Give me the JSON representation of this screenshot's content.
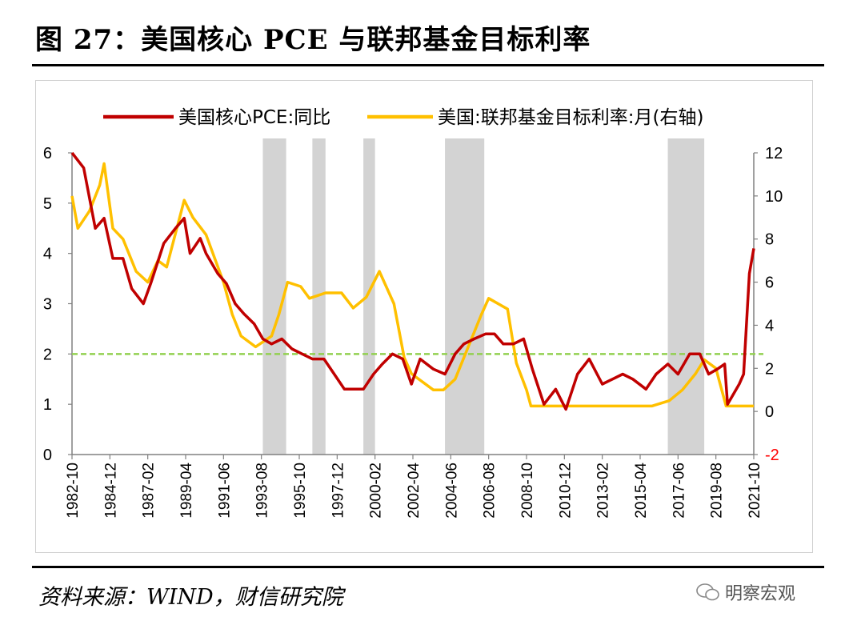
{
  "header": {
    "title": "图 27：美国核心 PCE 与联邦基金目标利率"
  },
  "footer": {
    "source": "资料来源：WIND，财信研究院",
    "watermark": "明察宏观"
  },
  "colors": {
    "pce": "#c00000",
    "ffr": "#ffc000",
    "ref": "#92d050",
    "shade": "#d3d3d3",
    "negative_tick": "#ff0000"
  },
  "chart_data": {
    "type": "line",
    "series": [
      {
        "name": "美国核心PCE:同比",
        "axis": "left",
        "x": [
          "1982-10",
          "1983-06",
          "1984-02",
          "1984-08",
          "1985-02",
          "1985-09",
          "1986-03",
          "1986-11",
          "1987-04",
          "1988-01",
          "1988-09",
          "1989-03",
          "1989-07",
          "1990-02",
          "1990-06",
          "1991-02",
          "1991-08",
          "1992-02",
          "1992-08",
          "1993-03",
          "1993-09",
          "1994-03",
          "1994-10",
          "1995-05",
          "1995-12",
          "1996-07",
          "1997-03",
          "1997-10",
          "1998-05",
          "1998-12",
          "1999-06",
          "2000-01",
          "2000-07",
          "2001-02",
          "2001-09",
          "2002-03",
          "2002-09",
          "2003-06",
          "2004-02",
          "2004-09",
          "2005-03",
          "2005-10",
          "2006-06",
          "2006-12",
          "2007-06",
          "2008-01",
          "2008-08",
          "2009-02",
          "2009-10",
          "2010-06",
          "2011-01",
          "2011-09",
          "2012-05",
          "2013-02",
          "2013-09",
          "2014-04",
          "2014-11",
          "2015-08",
          "2016-03",
          "2016-11",
          "2017-06",
          "2018-02",
          "2018-09",
          "2019-03",
          "2019-09",
          "2020-02",
          "2020-04",
          "2020-12",
          "2021-03",
          "2021-07",
          "2021-10"
        ],
        "values": [
          6.0,
          5.7,
          4.5,
          4.7,
          3.9,
          3.9,
          3.3,
          3.0,
          3.4,
          4.2,
          4.5,
          4.7,
          4.0,
          4.3,
          4.0,
          3.6,
          3.4,
          3.0,
          2.8,
          2.6,
          2.3,
          2.2,
          2.3,
          2.1,
          2.0,
          1.9,
          1.9,
          1.6,
          1.3,
          1.3,
          1.3,
          1.6,
          1.8,
          2.0,
          1.9,
          1.4,
          1.9,
          1.7,
          1.6,
          2.0,
          2.2,
          2.3,
          2.4,
          2.4,
          2.2,
          2.2,
          2.3,
          1.7,
          1.0,
          1.3,
          0.9,
          1.6,
          1.9,
          1.4,
          1.5,
          1.6,
          1.5,
          1.3,
          1.6,
          1.8,
          1.6,
          2.0,
          2.0,
          1.6,
          1.7,
          1.8,
          1.0,
          1.4,
          1.6,
          3.6,
          4.1
        ]
      },
      {
        "name": "美国:联邦基金目标利率:月(右轴)",
        "axis": "right",
        "x": [
          "1982-10",
          "1983-02",
          "1983-10",
          "1984-05",
          "1984-08",
          "1985-02",
          "1985-09",
          "1986-06",
          "1987-02",
          "1987-09",
          "1988-03",
          "1989-03",
          "1989-09",
          "1990-06",
          "1991-06",
          "1991-12",
          "1992-06",
          "1993-04",
          "1994-03",
          "1994-08",
          "1995-02",
          "1995-11",
          "1996-05",
          "1997-04",
          "1998-03",
          "1998-11",
          "1999-08",
          "2000-05",
          "2001-03",
          "2001-10",
          "2002-03",
          "2003-06",
          "2004-01",
          "2004-09",
          "2005-06",
          "2006-03",
          "2006-08",
          "2007-09",
          "2008-03",
          "2008-10",
          "2009-01",
          "2015-12",
          "2016-12",
          "2017-09",
          "2018-06",
          "2018-12",
          "2019-08",
          "2019-10",
          "2020-03",
          "2021-10"
        ],
        "values": [
          10.0,
          8.5,
          9.3,
          10.5,
          11.5,
          8.5,
          8.0,
          6.5,
          6.0,
          7.0,
          6.7,
          9.8,
          9.0,
          8.2,
          6.0,
          4.5,
          3.5,
          3.0,
          3.5,
          4.5,
          6.0,
          5.8,
          5.25,
          5.5,
          5.5,
          4.8,
          5.3,
          6.5,
          5.0,
          2.5,
          1.75,
          1.0,
          1.0,
          1.5,
          3.0,
          4.5,
          5.25,
          4.75,
          2.25,
          1.0,
          0.25,
          0.25,
          0.5,
          1.0,
          1.75,
          2.4,
          2.0,
          1.5,
          0.25,
          0.25
        ]
      }
    ],
    "reference_line": {
      "axis": "left",
      "value": 2
    },
    "shaded_periods": [
      [
        "1993-09",
        "1995-01"
      ],
      [
        "1996-07",
        "1997-04"
      ],
      [
        "1999-06",
        "2000-02"
      ],
      [
        "2004-02",
        "2006-05"
      ],
      [
        "2016-11",
        "2018-12"
      ]
    ],
    "x_ticks": [
      "1982-10",
      "1984-12",
      "1987-02",
      "1989-04",
      "1991-06",
      "1993-08",
      "1995-10",
      "1997-12",
      "2000-02",
      "2002-04",
      "2004-06",
      "2006-08",
      "2008-10",
      "2010-12",
      "2013-02",
      "2015-04",
      "2017-06",
      "2019-08",
      "2021-10"
    ],
    "y_left": {
      "range": [
        0,
        6
      ],
      "ticks": [
        "0",
        "1",
        "2",
        "3",
        "4",
        "5",
        "6"
      ]
    },
    "y_right": {
      "range": [
        -2,
        12
      ],
      "ticks": [
        "-2",
        "0",
        "2",
        "4",
        "6",
        "8",
        "10",
        "12"
      ]
    }
  }
}
